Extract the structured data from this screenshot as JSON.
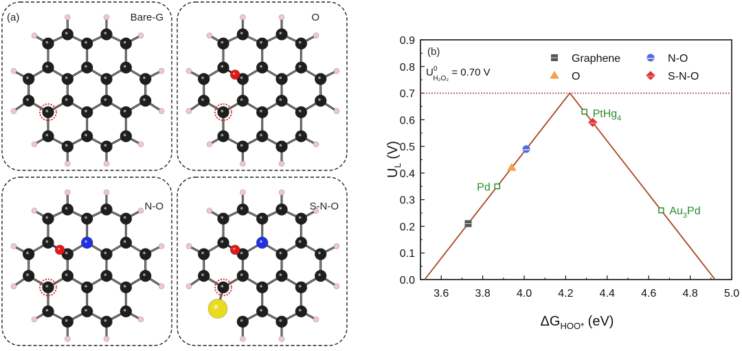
{
  "panel_a": {
    "label": "(a)",
    "structures": [
      {
        "name": "Bare-G",
        "dopants": []
      },
      {
        "name": "O",
        "dopants": [
          "O"
        ]
      },
      {
        "name": "N-O",
        "dopants": [
          "O",
          "N"
        ]
      },
      {
        "name": "S-N-O",
        "dopants": [
          "O",
          "N",
          "S"
        ]
      }
    ],
    "colors": {
      "C": "#1e1e1e",
      "H": "#f0c8c8",
      "O": "#e01818",
      "N": "#2030e0",
      "S": "#e8dc20",
      "active_site": "#e02020"
    }
  },
  "chart_data": {
    "type": "scatter",
    "panel_label": "(b)",
    "xlabel_main": "ΔG",
    "xlabel_sub": "HOO*",
    "xlabel_unit": " (eV)",
    "ylabel_main": "U",
    "ylabel_sub": "L",
    "ylabel_unit": " (V)",
    "xlim": [
      3.5,
      5.0
    ],
    "ylim": [
      0.0,
      0.9
    ],
    "xticks": [
      "3.6",
      "3.8",
      "4.0",
      "4.2",
      "4.4",
      "4.6",
      "4.8",
      "5.0"
    ],
    "yticks": [
      "0.0",
      "0.1",
      "0.2",
      "0.3",
      "0.4",
      "0.5",
      "0.6",
      "0.7",
      "0.8",
      "0.9"
    ],
    "reference_line": {
      "y": 0.7,
      "label_main": "U",
      "label_sup": "0",
      "label_sub": "H₂O₂",
      "label_value": " = 0.70 V",
      "color": "#a03030"
    },
    "volcano": {
      "points": [
        [
          3.52,
          0.0
        ],
        [
          4.22,
          0.7
        ],
        [
          4.92,
          0.0
        ]
      ],
      "color": "#a8461c"
    },
    "series": [
      {
        "name": "Graphene",
        "marker": "square",
        "color": "#555555",
        "x": 3.73,
        "y": 0.21,
        "in_legend": true
      },
      {
        "name": "O",
        "marker": "triangle",
        "color": "#f5a04a",
        "x": 3.94,
        "y": 0.42,
        "in_legend": true
      },
      {
        "name": "N-O",
        "marker": "circle",
        "color": "#5068e0",
        "x": 4.01,
        "y": 0.49,
        "in_legend": true
      },
      {
        "name": "S-N-O",
        "marker": "diamond",
        "color": "#e03434",
        "x": 4.33,
        "y": 0.59,
        "in_legend": true
      }
    ],
    "references": [
      {
        "name": "Pd",
        "sub": "",
        "rest": "",
        "x": 3.87,
        "y": 0.35,
        "label_side": "left"
      },
      {
        "name": "PtHg",
        "sub": "4",
        "rest": "",
        "x": 4.29,
        "y": 0.63,
        "label_side": "right"
      },
      {
        "name": "Au",
        "sub": "3",
        "rest": "Pd",
        "x": 4.66,
        "y": 0.26,
        "label_side": "right"
      }
    ],
    "reference_color": "#2a8a2a",
    "legend_placement": "top-right"
  }
}
